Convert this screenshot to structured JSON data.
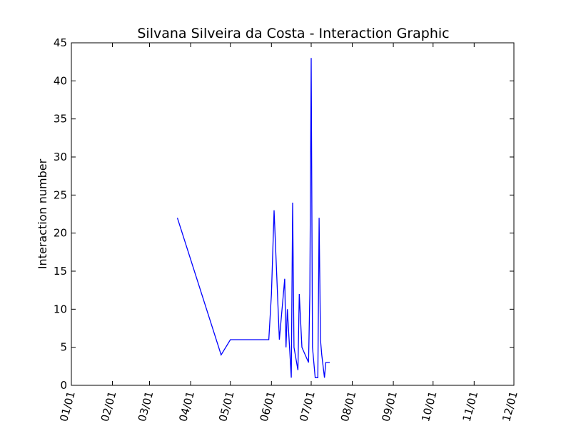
{
  "chart_data": {
    "type": "line",
    "title": "Silvana Silveira da Costa - Interaction Graphic",
    "xlabel": "",
    "ylabel": "Interaction number",
    "x_tick_labels": [
      "01/01",
      "02/01",
      "03/01",
      "04/01",
      "05/01",
      "06/01",
      "07/01",
      "08/01",
      "09/01",
      "10/01",
      "11/01",
      "12/01"
    ],
    "y_tick_labels": [
      "0",
      "5",
      "10",
      "15",
      "20",
      "25",
      "30",
      "35",
      "40",
      "45"
    ],
    "ylim": [
      0,
      45
    ],
    "xlim": [
      "01-01",
      "12-01"
    ],
    "grid": false,
    "legend": "none",
    "series": [
      {
        "color": "#0000ff",
        "x": [
          "03-22",
          "04-24",
          "05-01",
          "05-30",
          "06-01",
          "06-03",
          "06-07",
          "06-11",
          "06-12",
          "06-13",
          "06-16",
          "06-17",
          "06-18",
          "06-21",
          "06-22",
          "06-24",
          "06-29",
          "06-30",
          "07-01",
          "07-02",
          "07-04",
          "07-06",
          "07-07",
          "07-08",
          "07-09",
          "07-11",
          "07-12",
          "07-13",
          "07-14",
          "07-15"
        ],
        "y": [
          22,
          4,
          6,
          6,
          12,
          23,
          6,
          14,
          5,
          10,
          1,
          24,
          5,
          2,
          12,
          5,
          3,
          12,
          43,
          5,
          1,
          1,
          22,
          6,
          4,
          1,
          3,
          3,
          3,
          3
        ]
      }
    ]
  }
}
